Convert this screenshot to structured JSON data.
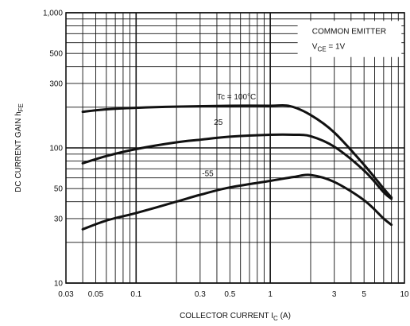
{
  "chart_data": {
    "type": "line",
    "title": "",
    "xlabel_main": "COLLECTOR CURRENT I",
    "xlabel_sub": "C",
    "xlabel_tail": " (A)",
    "ylabel_main": "DC CURRENT GAIN h",
    "ylabel_sub": "FE",
    "x_scale": "log",
    "y_scale": "log",
    "xlim": [
      0.03,
      10
    ],
    "ylim": [
      10,
      1000
    ],
    "grid": true,
    "x_ticks": [
      {
        "value": 0.03,
        "label": "0.03"
      },
      {
        "value": 0.05,
        "label": "0.05"
      },
      {
        "value": 0.1,
        "label": "0.1"
      },
      {
        "value": 0.3,
        "label": "0.3"
      },
      {
        "value": 0.5,
        "label": "0.5"
      },
      {
        "value": 1,
        "label": "1"
      },
      {
        "value": 3,
        "label": "3"
      },
      {
        "value": 5,
        "label": "5"
      },
      {
        "value": 10,
        "label": "10"
      }
    ],
    "y_ticks": [
      {
        "value": 10,
        "label": "10"
      },
      {
        "value": 30,
        "label": "30"
      },
      {
        "value": 50,
        "label": "50"
      },
      {
        "value": 100,
        "label": "100"
      },
      {
        "value": 300,
        "label": "300"
      },
      {
        "value": 500,
        "label": "500"
      },
      {
        "value": 1000,
        "label": "1,000"
      }
    ],
    "annotation": {
      "line1": "COMMON EMITTER",
      "line2_main": "V",
      "line2_sub": "CE",
      "line2_tail": " = 1V"
    },
    "series": [
      {
        "name": "Tc = 100°C",
        "points": [
          [
            0.04,
            185
          ],
          [
            0.06,
            193
          ],
          [
            0.1,
            198
          ],
          [
            0.2,
            202
          ],
          [
            0.5,
            205
          ],
          [
            1,
            205
          ],
          [
            1.4,
            204
          ],
          [
            2,
            175
          ],
          [
            3,
            130
          ],
          [
            5,
            75
          ],
          [
            7,
            50
          ],
          [
            8,
            43
          ]
        ]
      },
      {
        "name": "25",
        "points": [
          [
            0.04,
            77
          ],
          [
            0.06,
            87
          ],
          [
            0.1,
            98
          ],
          [
            0.2,
            110
          ],
          [
            0.3,
            115
          ],
          [
            0.5,
            121
          ],
          [
            1,
            125
          ],
          [
            1.5,
            125
          ],
          [
            2,
            122
          ],
          [
            3,
            102
          ],
          [
            5,
            68
          ],
          [
            7,
            47
          ],
          [
            8,
            42
          ]
        ]
      },
      {
        "name": "-55",
        "points": [
          [
            0.04,
            25
          ],
          [
            0.06,
            29
          ],
          [
            0.1,
            33
          ],
          [
            0.2,
            40
          ],
          [
            0.3,
            45
          ],
          [
            0.5,
            51
          ],
          [
            1,
            57
          ],
          [
            1.5,
            61
          ],
          [
            2,
            63
          ],
          [
            3,
            56
          ],
          [
            5,
            41
          ],
          [
            7,
            30
          ],
          [
            8,
            27
          ]
        ]
      }
    ]
  }
}
